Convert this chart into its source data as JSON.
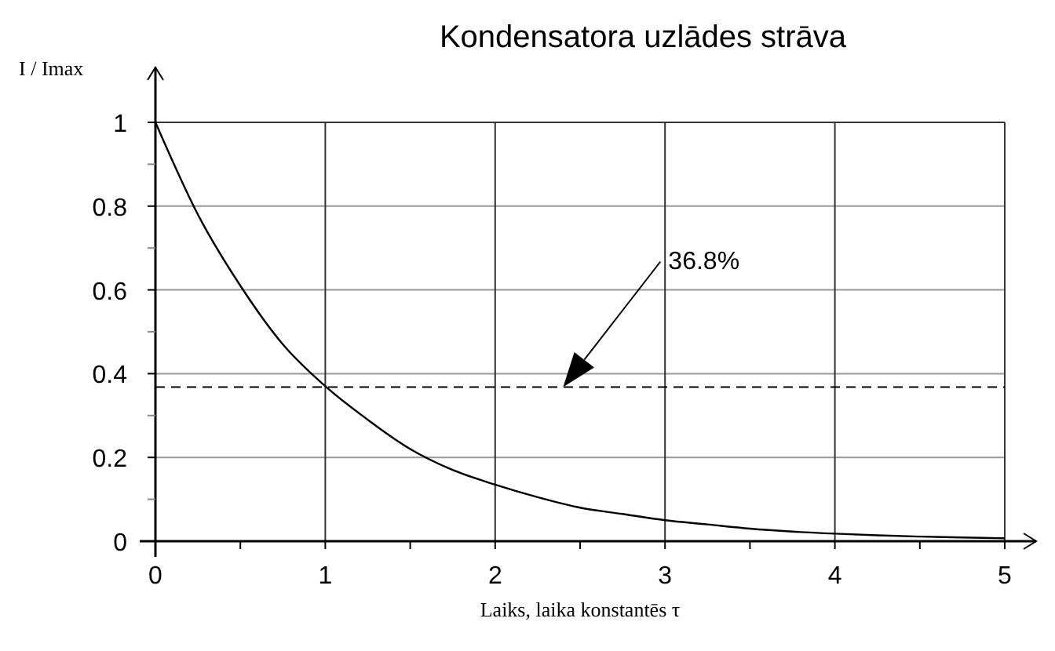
{
  "chart_data": {
    "type": "line",
    "title": "Kondensatora uzlādes strāva",
    "xlabel": "Laiks, laika konstantēs τ",
    "ylabel": "I / Imax",
    "x": [
      0,
      0.25,
      0.5,
      0.75,
      1,
      1.25,
      1.5,
      1.75,
      2,
      2.25,
      2.5,
      2.75,
      3,
      3.25,
      3.5,
      3.75,
      4,
      4.25,
      4.5,
      4.75,
      5
    ],
    "series": [
      {
        "color": "#000000",
        "values": [
          1,
          0.78,
          0.61,
          0.47,
          0.37,
          0.29,
          0.22,
          0.17,
          0.135,
          0.105,
          0.08,
          0.065,
          0.05,
          0.04,
          0.03,
          0.023,
          0.018,
          0.014,
          0.011,
          0.009,
          0.007
        ]
      }
    ],
    "xlim": [
      0,
      5
    ],
    "ylim": [
      0,
      1
    ],
    "xticks": [
      0,
      {
        "value": 0.5,
        "label": null
      },
      1,
      {
        "value": 1.5,
        "label": null
      },
      2,
      {
        "value": 2.5,
        "label": null
      },
      3,
      {
        "value": 3.5,
        "label": null
      },
      4,
      {
        "value": 4.5,
        "label": null
      },
      5
    ],
    "yticks": [
      0,
      {
        "value": 0.1,
        "label": null
      },
      0.2,
      {
        "value": 0.3,
        "label": null
      },
      0.4,
      {
        "value": 0.5,
        "label": null
      },
      0.6,
      {
        "value": 0.7,
        "label": null
      },
      0.8,
      {
        "value": 0.9,
        "label": null
      },
      1
    ],
    "grid": true,
    "marker": "none",
    "line_style": "solid",
    "ref_lines": [
      {
        "axis": "y",
        "value": 0.368,
        "line_style": "dashed",
        "color": "#000000",
        "label": "36.8%"
      }
    ]
  }
}
